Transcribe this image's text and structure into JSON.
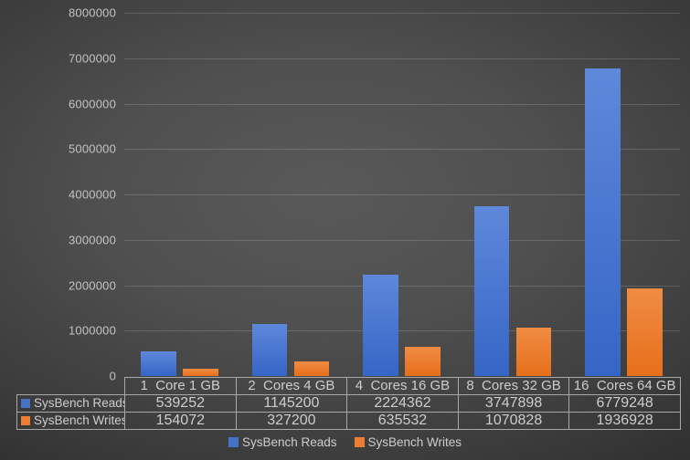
{
  "chart_data": {
    "type": "bar",
    "title": "",
    "categories": [
      "1  Core 1 GB",
      "2  Cores 4 GB",
      "4  Cores 16 GB",
      "8  Cores 32 GB",
      "16  Cores 64 GB"
    ],
    "series": [
      {
        "name": "SysBench Reads",
        "values": [
          539252,
          1145200,
          2224362,
          3747898,
          6779248
        ],
        "color": "#4472c4",
        "fill_top": "#5e88da",
        "fill_bottom": "#3565c6"
      },
      {
        "name": "SysBench Writes",
        "values": [
          154072,
          327200,
          635532,
          1070828,
          1936928
        ],
        "color": "#ed7d31",
        "fill_top": "#f08c44",
        "fill_bottom": "#e66f1a"
      }
    ],
    "ylim": [
      0,
      8000000
    ],
    "yticks": [
      0,
      1000000,
      2000000,
      3000000,
      4000000,
      5000000,
      6000000,
      7000000,
      8000000
    ],
    "grid": true,
    "legend_position": "bottom",
    "data_table_shown": true
  }
}
